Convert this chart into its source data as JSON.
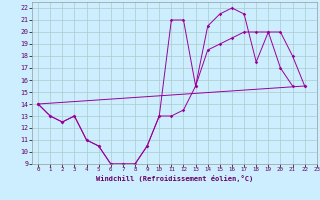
{
  "xlabel": "Windchill (Refroidissement éolien,°C)",
  "bg_color": "#cceeff",
  "line_color": "#990099",
  "grid_color": "#aacccc",
  "xlim": [
    -0.5,
    23
  ],
  "ylim": [
    9,
    22.5
  ],
  "xticks": [
    0,
    1,
    2,
    3,
    4,
    5,
    6,
    7,
    8,
    9,
    10,
    11,
    12,
    13,
    14,
    15,
    16,
    17,
    18,
    19,
    20,
    21,
    22,
    23
  ],
  "yticks": [
    9,
    10,
    11,
    12,
    13,
    14,
    15,
    16,
    17,
    18,
    19,
    20,
    21,
    22
  ],
  "line1_x": [
    0,
    1,
    2,
    3,
    4,
    5,
    6,
    7,
    8,
    9,
    10,
    11,
    12,
    13,
    14,
    15,
    16,
    17,
    18,
    19,
    20,
    21,
    22
  ],
  "line1_y": [
    14,
    13,
    12.5,
    13,
    11,
    10.5,
    9,
    9,
    9,
    10.5,
    13,
    21,
    21,
    15.5,
    20.5,
    21.5,
    22,
    21.5,
    17.5,
    20,
    17,
    15.5,
    null
  ],
  "line2_x": [
    0,
    1,
    2,
    3,
    4,
    5,
    6,
    7,
    8,
    9,
    10,
    11,
    12,
    13,
    14,
    15,
    16,
    17,
    18,
    19,
    20,
    21,
    22
  ],
  "line2_y": [
    14,
    13,
    12.5,
    13,
    11,
    10.5,
    9,
    9,
    9,
    10.5,
    13,
    13,
    13.5,
    15.5,
    18.5,
    19,
    19.5,
    20,
    20,
    20,
    20,
    18,
    15.5
  ],
  "line3_x": [
    0,
    22
  ],
  "line3_y": [
    14,
    15.5
  ]
}
